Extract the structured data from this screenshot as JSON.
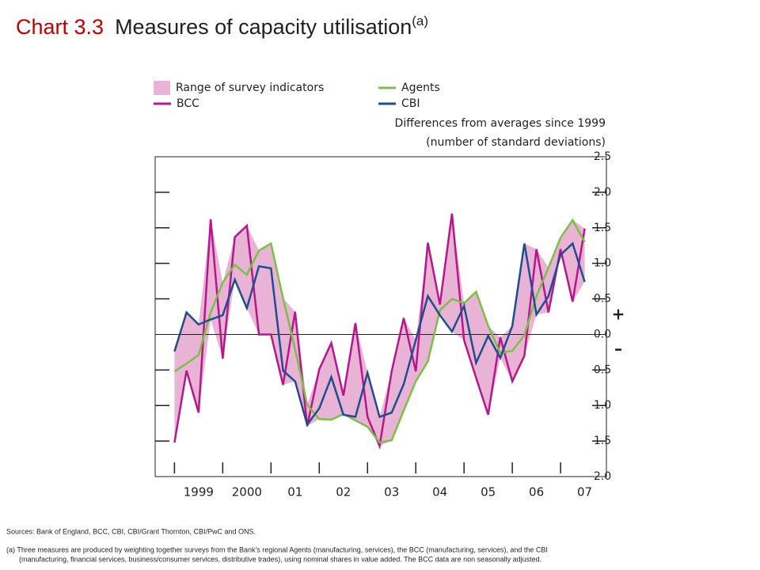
{
  "chart_data": {
    "type": "line",
    "title_prefix": "Chart 3.3",
    "title": "Measures of capacity utilisation",
    "title_note": "(a)",
    "y_label": [
      "Differences from averages since 1999",
      "(number of standard deviations)"
    ],
    "sign_labels": [
      "+",
      "–"
    ],
    "range": {
      "name": "Range of survey indicators",
      "color": "#e9b3d6"
    },
    "x": [
      1999,
      1999.25,
      1999.5,
      1999.75,
      2000,
      2000.25,
      2000.5,
      2000.75,
      2001,
      2001.25,
      2001.5,
      2001.75,
      2002,
      2002.25,
      2002.5,
      2002.75,
      2003,
      2003.25,
      2003.5,
      2003.75,
      2004,
      2004.25,
      2004.5,
      2004.75,
      2005,
      2005.25,
      2005.5,
      2005.75,
      2006,
      2006.25,
      2006.5,
      2006.75,
      2007,
      2007.25,
      2007.5
    ],
    "series": [
      {
        "name": "BCC",
        "color": "#b5178c",
        "values": [
          -1.52,
          -0.51,
          -1.1,
          1.62,
          -0.34,
          1.37,
          1.53,
          0.0,
          0.0,
          -0.71,
          0.32,
          -1.29,
          -0.49,
          -0.12,
          -0.86,
          0.16,
          -1.16,
          -1.57,
          -0.52,
          0.23,
          -0.52,
          1.29,
          0.42,
          1.7,
          -0.08,
          -0.61,
          -1.13,
          -0.04,
          -0.66,
          -0.3,
          1.2,
          0.31,
          1.2,
          0.46,
          1.49
        ]
      },
      {
        "name": "Agents",
        "color": "#7ac143",
        "values": [
          -0.52,
          -0.41,
          -0.29,
          0.31,
          0.73,
          0.98,
          0.84,
          1.18,
          1.28,
          0.51,
          -0.21,
          -0.99,
          -1.19,
          -1.2,
          -1.12,
          -1.21,
          -1.3,
          -1.52,
          -1.49,
          -1.07,
          -0.66,
          -0.38,
          0.34,
          0.5,
          0.44,
          0.6,
          0.12,
          -0.26,
          -0.23,
          -0.01,
          0.54,
          0.94,
          1.36,
          1.61,
          1.3
        ]
      },
      {
        "name": "CBI",
        "color": "#1f4e8c",
        "values": [
          -0.24,
          0.31,
          0.14,
          0.21,
          0.27,
          0.77,
          0.37,
          0.96,
          0.93,
          -0.51,
          -0.66,
          -1.27,
          -1.04,
          -0.6,
          -1.13,
          -1.16,
          -0.54,
          -1.16,
          -1.1,
          -0.7,
          -0.08,
          0.54,
          0.27,
          0.04,
          0.4,
          -0.4,
          -0.02,
          -0.33,
          0.12,
          1.28,
          0.28,
          0.54,
          1.12,
          1.28,
          0.74
        ]
      }
    ],
    "xlim": [
      1998.6,
      2007.95
    ],
    "xticks": [
      1999,
      2000,
      {
        "value": 2001,
        "label": "01"
      },
      {
        "value": 2002,
        "label": "02"
      },
      {
        "value": 2003,
        "label": "03"
      },
      {
        "value": 2004,
        "label": "04"
      },
      {
        "value": 2005,
        "label": "05"
      },
      {
        "value": 2006,
        "label": "06"
      },
      {
        "value": 2007,
        "label": "07"
      }
    ],
    "ylim": [
      -2.0,
      2.5
    ],
    "yticks": [
      {
        "value": -2.0,
        "label": "2.0"
      },
      {
        "value": -1.5,
        "label": "1.5"
      },
      {
        "value": -1.0,
        "label": "1.0"
      },
      {
        "value": -0.5,
        "label": "0.5"
      },
      {
        "value": 0,
        "label": "0.0"
      },
      0.5,
      {
        "value": 1.0,
        "label": "1.0"
      },
      1.5,
      {
        "value": 2.0,
        "label": "2.0"
      },
      2.5
    ],
    "sources": "Sources: Bank of England, BCC, CBI, CBI/Grant Thornton, CBI/PwC and ONS.",
    "footnote": [
      "(a) Three measures are produced by weighting together surveys from the Bank's regional Agents (manufacturing, services), the BCC (manufacturing, services), and the CBI",
      "(manufacturing, financial services, business/consumer services, distributive trades), using nominal shares in value added.  The BCC data are non seasonally adjusted."
    ]
  }
}
